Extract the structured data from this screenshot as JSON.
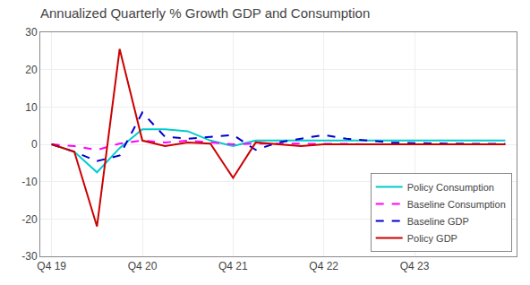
{
  "chart_data": {
    "type": "line",
    "title": "Annualized Quarterly % Growth GDP and Consumption",
    "categories": [
      "Q4 19",
      null,
      null,
      null,
      "Q4 20",
      null,
      null,
      null,
      "Q4 21",
      null,
      null,
      null,
      "Q4 22",
      null,
      null,
      null,
      "Q4 23",
      null,
      null,
      null,
      null
    ],
    "series": [
      {
        "name": "Policy Consumption",
        "color": "#00cccc",
        "line_style": "solid",
        "values": [
          0.0,
          -2.0,
          -7.5,
          -1.0,
          4.0,
          4.0,
          3.5,
          1.0,
          -0.5,
          1.0,
          1.0,
          1.0,
          1.0,
          1.0,
          1.0,
          1.0,
          1.0,
          1.0,
          1.0,
          1.0,
          1.0
        ]
      },
      {
        "name": "Baseline Consumption",
        "color": "#ff00ff",
        "line_style": "dashed",
        "values": [
          0.0,
          -0.5,
          -1.5,
          0.2,
          1.0,
          0.5,
          1.0,
          0.5,
          0.0,
          0.2,
          0.2,
          0.2,
          0.1,
          0.1,
          0.0,
          0.0,
          0.0,
          0.0,
          0.0,
          0.0,
          0.0
        ]
      },
      {
        "name": "Baseline GDP",
        "color": "#0000cc",
        "line_style": "dashed",
        "values": [
          0.0,
          -2.0,
          -4.5,
          -3.0,
          8.5,
          2.0,
          1.5,
          2.0,
          2.5,
          -1.5,
          0.5,
          1.5,
          2.5,
          1.5,
          1.0,
          0.5,
          0.3,
          0.2,
          0.1,
          0.1,
          0.1
        ]
      },
      {
        "name": "Policy GDP",
        "color": "#cc0000",
        "line_style": "solid",
        "values": [
          0.0,
          -2.0,
          -22.0,
          25.5,
          1.0,
          -0.5,
          0.5,
          0.2,
          -9.0,
          0.5,
          0.0,
          -0.5,
          0.0,
          0.0,
          0.0,
          0.0,
          0.0,
          0.0,
          0.0,
          0.0,
          0.0
        ]
      }
    ],
    "ylim": [
      -30,
      30
    ],
    "yticks": [
      -30,
      -20,
      -10,
      0,
      10,
      20,
      30
    ],
    "grid": true,
    "legend": "lower right"
  }
}
